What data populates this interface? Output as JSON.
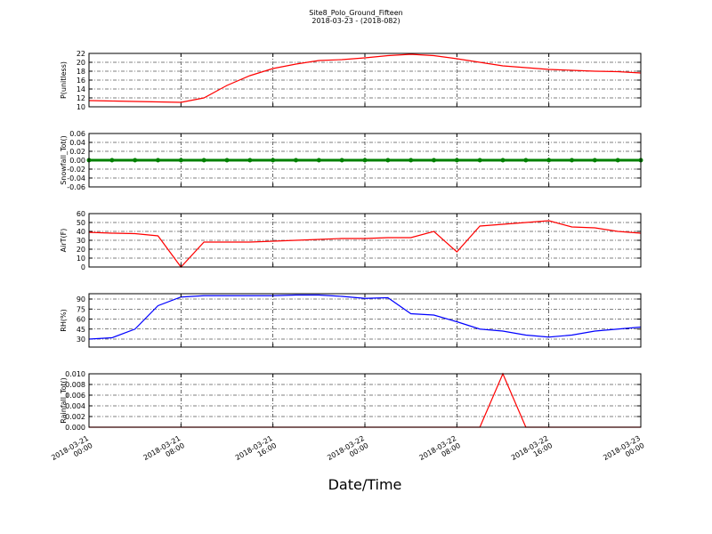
{
  "chart_data": [
    {
      "type": "line",
      "title": "Site8_Polo_Ground_Fifteen",
      "subtitle": "2018-03-23 - (2018-082)",
      "y_label": "P(unitless)",
      "color": "#ff0000",
      "x": [
        "2018-03-21 00:00",
        "2018-03-21 02:00",
        "2018-03-21 04:00",
        "2018-03-21 06:00",
        "2018-03-21 08:00",
        "2018-03-21 10:00",
        "2018-03-21 12:00",
        "2018-03-21 14:00",
        "2018-03-21 16:00",
        "2018-03-21 18:00",
        "2018-03-21 20:00",
        "2018-03-21 22:00",
        "2018-03-22 00:00",
        "2018-03-22 02:00",
        "2018-03-22 04:00",
        "2018-03-22 06:00",
        "2018-03-22 08:00",
        "2018-03-22 10:00",
        "2018-03-22 12:00",
        "2018-03-22 14:00",
        "2018-03-22 16:00",
        "2018-03-22 18:00",
        "2018-03-22 20:00",
        "2018-03-22 22:00",
        "2018-03-23 00:00"
      ],
      "values": [
        11.4,
        11.3,
        11.2,
        11.1,
        11.0,
        12.0,
        14.8,
        17.0,
        18.6,
        19.6,
        20.4,
        20.6,
        21.0,
        21.5,
        21.8,
        21.5,
        20.8,
        20.0,
        19.2,
        18.8,
        18.4,
        18.2,
        18.0,
        17.9,
        17.6
      ],
      "ylim": [
        10,
        22
      ],
      "yticks": [
        10,
        12,
        14,
        16,
        18,
        20,
        22
      ],
      "grid": true
    },
    {
      "type": "line",
      "y_label": "Snowfall_Tot()",
      "color": "#008000",
      "markers": true,
      "x": [
        "2018-03-21 00:00",
        "2018-03-21 02:00",
        "2018-03-21 04:00",
        "2018-03-21 06:00",
        "2018-03-21 08:00",
        "2018-03-21 10:00",
        "2018-03-21 12:00",
        "2018-03-21 14:00",
        "2018-03-21 16:00",
        "2018-03-21 18:00",
        "2018-03-21 20:00",
        "2018-03-21 22:00",
        "2018-03-22 00:00",
        "2018-03-22 02:00",
        "2018-03-22 04:00",
        "2018-03-22 06:00",
        "2018-03-22 08:00",
        "2018-03-22 10:00",
        "2018-03-22 12:00",
        "2018-03-22 14:00",
        "2018-03-22 16:00",
        "2018-03-22 18:00",
        "2018-03-22 20:00",
        "2018-03-22 22:00",
        "2018-03-23 00:00"
      ],
      "values": [
        0,
        0,
        0,
        0,
        0,
        0,
        0,
        0,
        0,
        0,
        0,
        0,
        0,
        0,
        0,
        0,
        0,
        0,
        0,
        0,
        0,
        0,
        0,
        0,
        0
      ],
      "ylim": [
        -0.06,
        0.06
      ],
      "yticks": [
        -0.06,
        -0.04,
        -0.02,
        {
          "value": 0,
          "label": "0.00"
        },
        0.02,
        0.04,
        0.06
      ],
      "grid": true
    },
    {
      "type": "line",
      "y_label": "AirT(F)",
      "color": "#ff0000",
      "x": [
        "2018-03-21 00:00",
        "2018-03-21 02:00",
        "2018-03-21 04:00",
        "2018-03-21 06:00",
        "2018-03-21 08:00",
        "2018-03-21 10:00",
        "2018-03-21 12:00",
        "2018-03-21 14:00",
        "2018-03-21 16:00",
        "2018-03-21 18:00",
        "2018-03-21 20:00",
        "2018-03-21 22:00",
        "2018-03-22 00:00",
        "2018-03-22 02:00",
        "2018-03-22 04:00",
        "2018-03-22 06:00",
        "2018-03-22 08:00",
        "2018-03-22 10:00",
        "2018-03-22 12:00",
        "2018-03-22 14:00",
        "2018-03-22 16:00",
        "2018-03-22 18:00",
        "2018-03-22 20:00",
        "2018-03-22 22:00",
        "2018-03-23 00:00"
      ],
      "values": [
        39,
        38,
        37.5,
        35,
        0,
        28,
        28,
        28,
        29,
        30,
        31,
        32,
        32,
        33,
        33,
        40,
        17,
        46,
        48,
        50,
        52,
        45,
        44,
        40,
        38
      ],
      "ylim": [
        0,
        60
      ],
      "yticks": [
        0,
        10,
        20,
        30,
        40,
        50,
        60
      ],
      "grid": true
    },
    {
      "type": "line",
      "y_label": "RH(%)",
      "color": "#0000ff",
      "x": [
        "2018-03-21 00:00",
        "2018-03-21 02:00",
        "2018-03-21 04:00",
        "2018-03-21 06:00",
        "2018-03-21 08:00",
        "2018-03-21 10:00",
        "2018-03-21 12:00",
        "2018-03-21 14:00",
        "2018-03-21 16:00",
        "2018-03-21 18:00",
        "2018-03-21 20:00",
        "2018-03-21 22:00",
        "2018-03-22 00:00",
        "2018-03-22 02:00",
        "2018-03-22 04:00",
        "2018-03-22 06:00",
        "2018-03-22 08:00",
        "2018-03-22 10:00",
        "2018-03-22 12:00",
        "2018-03-22 14:00",
        "2018-03-22 16:00",
        "2018-03-22 18:00",
        "2018-03-22 20:00",
        "2018-03-22 22:00",
        "2018-03-23 00:00"
      ],
      "values": [
        30,
        32,
        45,
        80,
        93,
        95,
        95,
        95,
        95,
        96,
        96,
        94,
        91,
        92,
        68,
        66,
        56,
        45,
        42,
        36,
        33,
        36,
        42,
        45,
        48
      ],
      "ylim": [
        18,
        98
      ],
      "yticks": [
        30,
        45,
        60,
        75,
        90
      ],
      "grid": true
    },
    {
      "type": "line",
      "y_label": "Rainfall_Tot()",
      "x_label": "Date/Time",
      "color": "#ff0000",
      "x": [
        "2018-03-21 00:00",
        "2018-03-21 02:00",
        "2018-03-21 04:00",
        "2018-03-21 06:00",
        "2018-03-21 08:00",
        "2018-03-21 10:00",
        "2018-03-21 12:00",
        "2018-03-21 14:00",
        "2018-03-21 16:00",
        "2018-03-21 18:00",
        "2018-03-21 20:00",
        "2018-03-21 22:00",
        "2018-03-22 00:00",
        "2018-03-22 02:00",
        "2018-03-22 04:00",
        "2018-03-22 06:00",
        "2018-03-22 08:00",
        "2018-03-22 10:00",
        "2018-03-22 12:00",
        "2018-03-22 14:00",
        "2018-03-22 16:00",
        "2018-03-22 18:00",
        "2018-03-22 20:00",
        "2018-03-22 22:00",
        "2018-03-23 00:00"
      ],
      "values": [
        0,
        0,
        0,
        0,
        0,
        0,
        0,
        0,
        0,
        0,
        0,
        0,
        0,
        0,
        0,
        0,
        0,
        0,
        0.01,
        0,
        0,
        0,
        0,
        0,
        0
      ],
      "ylim": [
        0,
        0.01
      ],
      "yticks": [
        {
          "value": 0,
          "label": "0.000"
        },
        0.002,
        0.004,
        0.006,
        0.008,
        {
          "value": 0.01,
          "label": "0.010"
        }
      ],
      "grid": true,
      "xlim": [
        "2018-03-21 00:00",
        "2018-03-23 00:00"
      ],
      "xticks": [
        "2018-03-21 00:00",
        "2018-03-21 08:00",
        "2018-03-21 16:00",
        "2018-03-22 00:00",
        "2018-03-22 08:00",
        "2018-03-22 16:00",
        "2018-03-23 00:00"
      ]
    }
  ]
}
